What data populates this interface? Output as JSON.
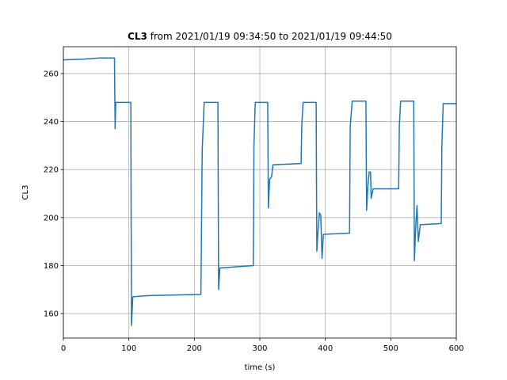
{
  "chart_data": {
    "type": "line",
    "title": {
      "bold": "CL3",
      "text": "from 2021/01/19 09:34:50 to 2021/01/19 09:44:50"
    },
    "x_label": "time (s)",
    "y_label": "CL3",
    "x": [
      0,
      30,
      55,
      78,
      79,
      80,
      103,
      104,
      106,
      130,
      210,
      212,
      215,
      236,
      237,
      239,
      290,
      291,
      293,
      312,
      313,
      315,
      318,
      320,
      363,
      364,
      366,
      386,
      387,
      389,
      391,
      393,
      395,
      397,
      437,
      438,
      441,
      462,
      463,
      465,
      467,
      469,
      470,
      473,
      512,
      513,
      515,
      535,
      536,
      538,
      540,
      542,
      545,
      577,
      578,
      580,
      600
    ],
    "values": [
      265.7,
      266,
      266.5,
      266.5,
      237,
      248,
      248,
      155,
      167,
      167.5,
      168,
      228,
      248,
      248,
      170,
      179,
      180,
      230,
      248,
      248,
      204,
      216,
      217,
      222,
      222.5,
      238,
      248,
      248,
      186,
      195,
      202,
      201,
      183,
      193,
      193.5,
      238,
      248.5,
      248.5,
      203,
      213,
      219,
      219,
      208,
      212,
      212,
      238,
      248.5,
      248.5,
      182,
      196,
      205,
      190,
      197,
      197.5,
      230,
      247.5,
      247.5
    ],
    "color": "#1f77b4",
    "xlim": [
      0,
      600
    ],
    "xticks": [
      0,
      100,
      200,
      300,
      400,
      500,
      600
    ],
    "ylim": [
      149.8,
      271.2
    ],
    "yticks": [
      160,
      180,
      200,
      220,
      240,
      260
    ],
    "grid": true
  }
}
